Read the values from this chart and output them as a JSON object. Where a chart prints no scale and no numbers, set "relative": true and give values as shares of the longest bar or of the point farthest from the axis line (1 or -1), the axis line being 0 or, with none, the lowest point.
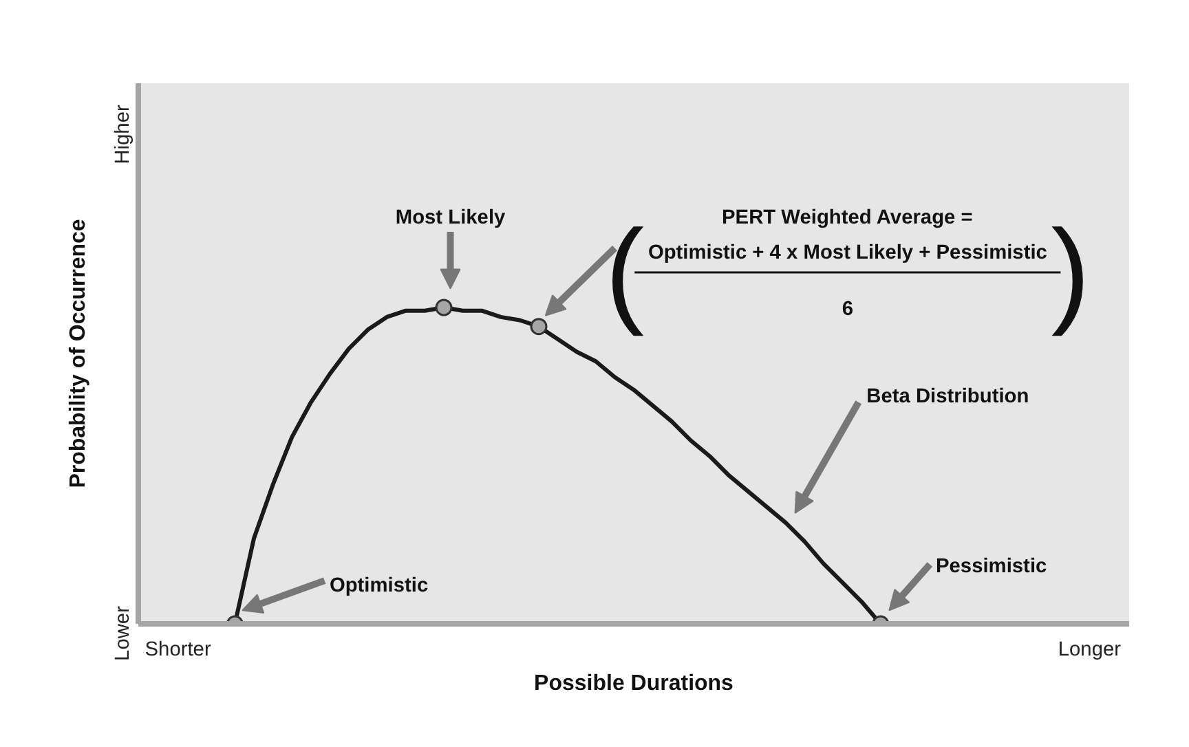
{
  "chart_data": {
    "type": "line",
    "xlabel": "Possible Durations",
    "ylabel": "Probability of Occurrence",
    "relative": true,
    "categories": [
      "Shorter",
      null,
      null,
      null,
      null,
      null,
      null,
      null,
      null,
      null,
      null,
      null,
      null,
      null,
      null,
      null,
      null,
      null,
      null,
      null,
      null,
      null,
      null,
      null,
      null,
      null,
      null,
      null,
      null,
      null,
      null,
      null,
      null,
      null,
      null,
      null,
      null,
      null,
      null,
      null,
      null,
      null,
      null,
      null,
      null,
      null,
      null,
      null,
      "Longer"
    ],
    "grid": false,
    "legend": false,
    "marker": "none",
    "line_style": "solid",
    "series": [
      {
        "color": "#1a1a1a",
        "values": [
          null,
          null,
          null,
          0,
          0.27,
          0.44,
          0.59,
          0.7,
          0.79,
          0.87,
          0.93,
          0.97,
          0.99,
          0.99,
          1,
          0.99,
          0.99,
          0.97,
          0.96,
          0.94,
          0.9,
          0.86,
          0.83,
          0.78,
          0.74,
          0.69,
          0.64,
          0.58,
          0.53,
          0.47,
          0.42,
          0.37,
          0.32,
          0.26,
          0.19,
          0.13,
          0.07,
          0,
          null,
          null,
          null,
          null,
          null,
          null,
          null,
          null,
          null,
          null,
          null
        ]
      },
      {
        "type": "scatter",
        "color": "#a6a6a6",
        "marker": "circle",
        "values": [
          null,
          null,
          null,
          0,
          null,
          null,
          null,
          null,
          null,
          null,
          null,
          null,
          null,
          null,
          1,
          null,
          null,
          null,
          null,
          0.94,
          null,
          null,
          null,
          null,
          null,
          null,
          null,
          null,
          null,
          null,
          null,
          null,
          null,
          null,
          null,
          null,
          null,
          0,
          null,
          null,
          null,
          null,
          null,
          null,
          null,
          null,
          null,
          null,
          null
        ]
      }
    ],
    "annotations": [
      "Most Likely",
      "Optimistic",
      "Pessimistic",
      "Beta Distribution",
      "PERT Weighted Average =",
      "Optimistic + 4 x Most Likely + Pessimistic",
      "6",
      "Lower",
      "Higher",
      "(",
      ")"
    ]
  }
}
